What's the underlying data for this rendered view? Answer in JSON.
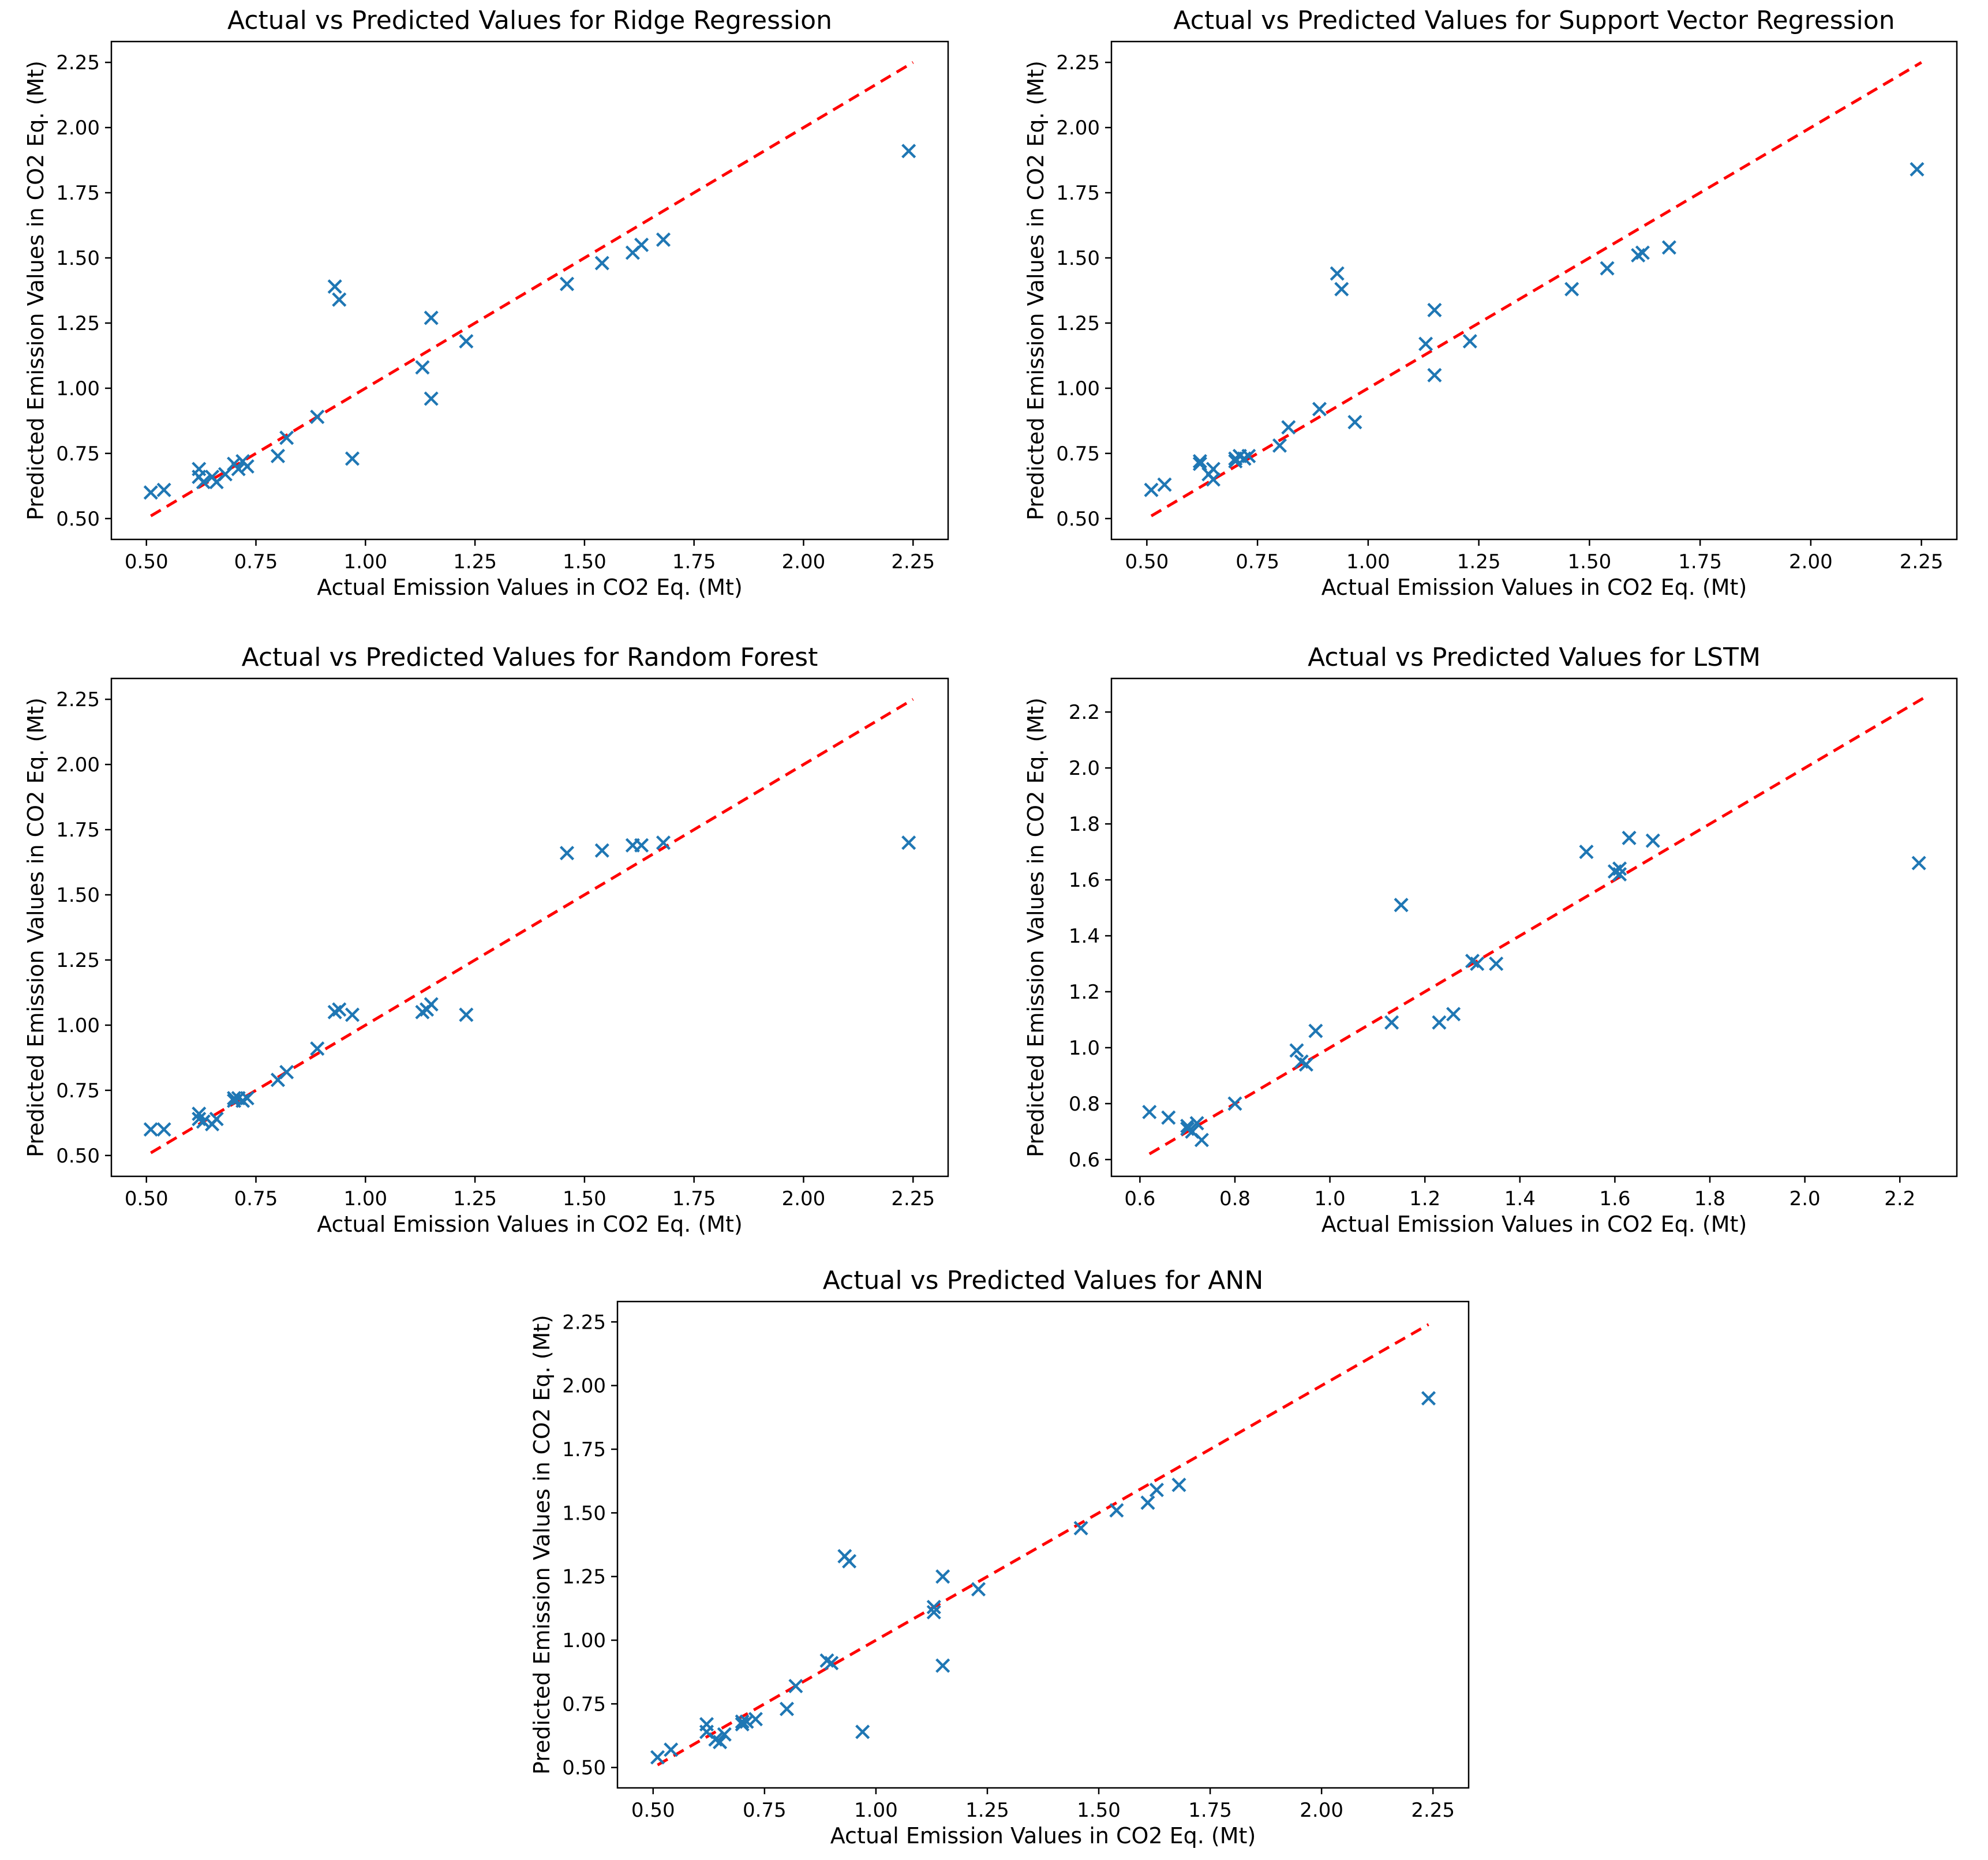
{
  "page": {
    "background": "#ffffff"
  },
  "colors": {
    "marker": "#1f77b4",
    "identity_line": "#ff0000",
    "axis": "#000000",
    "text": "#000000"
  },
  "chart_data": [
    {
      "id": "ridge",
      "type": "scatter",
      "title": "Actual vs Predicted Values for Ridge Regression",
      "xlabel": "Actual Emission Values in CO2 Eq. (Mt)",
      "ylabel": "Predicted Emission Values in CO2 Eq. (Mt)",
      "xlim": [
        0.42,
        2.33
      ],
      "ylim": [
        0.42,
        2.33
      ],
      "xticks": [
        0.5,
        0.75,
        1.0,
        1.25,
        1.5,
        1.75,
        2.0,
        2.25
      ],
      "yticks": [
        0.5,
        0.75,
        1.0,
        1.25,
        1.5,
        1.75,
        2.0,
        2.25
      ],
      "tick_decimals": 2,
      "grid": false,
      "legend": null,
      "marker": "x",
      "identity_line": [
        0.51,
        2.25
      ],
      "points": [
        [
          0.51,
          0.6
        ],
        [
          0.54,
          0.61
        ],
        [
          0.62,
          0.69
        ],
        [
          0.62,
          0.66
        ],
        [
          0.63,
          0.64
        ],
        [
          0.65,
          0.66
        ],
        [
          0.66,
          0.64
        ],
        [
          0.68,
          0.67
        ],
        [
          0.7,
          0.71
        ],
        [
          0.71,
          0.69
        ],
        [
          0.72,
          0.72
        ],
        [
          0.73,
          0.7
        ],
        [
          0.8,
          0.74
        ],
        [
          0.82,
          0.81
        ],
        [
          0.89,
          0.89
        ],
        [
          0.93,
          1.39
        ],
        [
          0.94,
          1.34
        ],
        [
          0.97,
          0.73
        ],
        [
          1.13,
          1.08
        ],
        [
          1.15,
          1.27
        ],
        [
          1.15,
          0.96
        ],
        [
          1.23,
          1.18
        ],
        [
          1.46,
          1.4
        ],
        [
          1.54,
          1.48
        ],
        [
          1.61,
          1.52
        ],
        [
          1.63,
          1.55
        ],
        [
          1.68,
          1.57
        ],
        [
          2.24,
          1.91
        ]
      ]
    },
    {
      "id": "svr",
      "type": "scatter",
      "title": "Actual vs Predicted Values for Support Vector Regression",
      "xlabel": "Actual Emission Values in CO2 Eq. (Mt)",
      "ylabel": "Predicted Emission Values in CO2 Eq. (Mt)",
      "xlim": [
        0.42,
        2.33
      ],
      "ylim": [
        0.42,
        2.33
      ],
      "xticks": [
        0.5,
        0.75,
        1.0,
        1.25,
        1.5,
        1.75,
        2.0,
        2.25
      ],
      "yticks": [
        0.5,
        0.75,
        1.0,
        1.25,
        1.5,
        1.75,
        2.0,
        2.25
      ],
      "tick_decimals": 2,
      "grid": false,
      "legend": null,
      "marker": "x",
      "identity_line": [
        0.51,
        2.25
      ],
      "points": [
        [
          0.51,
          0.61
        ],
        [
          0.54,
          0.63
        ],
        [
          0.62,
          0.72
        ],
        [
          0.62,
          0.71
        ],
        [
          0.64,
          0.67
        ],
        [
          0.65,
          0.69
        ],
        [
          0.65,
          0.65
        ],
        [
          0.7,
          0.73
        ],
        [
          0.7,
          0.72
        ],
        [
          0.71,
          0.74
        ],
        [
          0.72,
          0.73
        ],
        [
          0.73,
          0.74
        ],
        [
          0.8,
          0.78
        ],
        [
          0.82,
          0.85
        ],
        [
          0.89,
          0.92
        ],
        [
          0.93,
          1.44
        ],
        [
          0.94,
          1.38
        ],
        [
          0.97,
          0.87
        ],
        [
          1.13,
          1.17
        ],
        [
          1.15,
          1.3
        ],
        [
          1.15,
          1.05
        ],
        [
          1.23,
          1.18
        ],
        [
          1.46,
          1.38
        ],
        [
          1.54,
          1.46
        ],
        [
          1.61,
          1.51
        ],
        [
          1.62,
          1.52
        ],
        [
          1.68,
          1.54
        ],
        [
          2.24,
          1.84
        ]
      ]
    },
    {
      "id": "rf",
      "type": "scatter",
      "title": "Actual vs Predicted Values for Random Forest",
      "xlabel": "Actual Emission Values in CO2 Eq. (Mt)",
      "ylabel": "Predicted Emission Values in CO2 Eq. (Mt)",
      "xlim": [
        0.42,
        2.33
      ],
      "ylim": [
        0.42,
        2.33
      ],
      "xticks": [
        0.5,
        0.75,
        1.0,
        1.25,
        1.5,
        1.75,
        2.0,
        2.25
      ],
      "yticks": [
        0.5,
        0.75,
        1.0,
        1.25,
        1.5,
        1.75,
        2.0,
        2.25
      ],
      "tick_decimals": 2,
      "grid": false,
      "legend": null,
      "marker": "x",
      "identity_line": [
        0.51,
        2.25
      ],
      "points": [
        [
          0.51,
          0.6
        ],
        [
          0.54,
          0.6
        ],
        [
          0.62,
          0.66
        ],
        [
          0.62,
          0.64
        ],
        [
          0.63,
          0.63
        ],
        [
          0.65,
          0.62
        ],
        [
          0.66,
          0.64
        ],
        [
          0.7,
          0.71
        ],
        [
          0.7,
          0.72
        ],
        [
          0.71,
          0.72
        ],
        [
          0.72,
          0.71
        ],
        [
          0.73,
          0.72
        ],
        [
          0.8,
          0.79
        ],
        [
          0.82,
          0.82
        ],
        [
          0.89,
          0.91
        ],
        [
          0.93,
          1.05
        ],
        [
          0.94,
          1.06
        ],
        [
          0.97,
          1.04
        ],
        [
          1.13,
          1.05
        ],
        [
          1.14,
          1.06
        ],
        [
          1.15,
          1.08
        ],
        [
          1.23,
          1.04
        ],
        [
          1.46,
          1.66
        ],
        [
          1.54,
          1.67
        ],
        [
          1.61,
          1.69
        ],
        [
          1.63,
          1.69
        ],
        [
          1.68,
          1.7
        ],
        [
          2.24,
          1.7
        ]
      ]
    },
    {
      "id": "lstm",
      "type": "scatter",
      "title": "Actual vs Predicted Values for LSTM",
      "xlabel": "Actual Emission Values in CO2 Eq. (Mt)",
      "ylabel": "Predicted Emission Values in CO2 Eq. (Mt)",
      "xlim": [
        0.54,
        2.32
      ],
      "ylim": [
        0.54,
        2.32
      ],
      "xticks": [
        0.6,
        0.8,
        1.0,
        1.2,
        1.4,
        1.6,
        1.8,
        2.0,
        2.2
      ],
      "yticks": [
        0.6,
        0.8,
        1.0,
        1.2,
        1.4,
        1.6,
        1.8,
        2.0,
        2.2
      ],
      "tick_decimals": 1,
      "grid": false,
      "legend": null,
      "marker": "x",
      "identity_line": [
        0.62,
        2.25
      ],
      "points": [
        [
          0.62,
          0.77
        ],
        [
          0.66,
          0.75
        ],
        [
          0.7,
          0.72
        ],
        [
          0.7,
          0.71
        ],
        [
          0.71,
          0.7
        ],
        [
          0.72,
          0.73
        ],
        [
          0.73,
          0.67
        ],
        [
          0.8,
          0.8
        ],
        [
          0.93,
          0.99
        ],
        [
          0.94,
          0.95
        ],
        [
          0.95,
          0.94
        ],
        [
          0.97,
          1.06
        ],
        [
          1.13,
          1.09
        ],
        [
          1.15,
          1.51
        ],
        [
          1.23,
          1.09
        ],
        [
          1.26,
          1.12
        ],
        [
          1.3,
          1.31
        ],
        [
          1.31,
          1.3
        ],
        [
          1.35,
          1.3
        ],
        [
          1.54,
          1.7
        ],
        [
          1.6,
          1.63
        ],
        [
          1.61,
          1.64
        ],
        [
          1.61,
          1.62
        ],
        [
          1.63,
          1.75
        ],
        [
          1.68,
          1.74
        ],
        [
          2.24,
          1.66
        ]
      ]
    },
    {
      "id": "ann",
      "type": "scatter",
      "title": "Actual vs Predicted Values for ANN",
      "xlabel": "Actual Emission Values in CO2 Eq. (Mt)",
      "ylabel": "Predicted Emission Values in CO2 Eq. (Mt)",
      "xlim": [
        0.42,
        2.33
      ],
      "ylim": [
        0.42,
        2.33
      ],
      "xticks": [
        0.5,
        0.75,
        1.0,
        1.25,
        1.5,
        1.75,
        2.0,
        2.25
      ],
      "yticks": [
        0.5,
        0.75,
        1.0,
        1.25,
        1.5,
        1.75,
        2.0,
        2.25
      ],
      "tick_decimals": 2,
      "grid": false,
      "legend": null,
      "marker": "x",
      "identity_line": [
        0.51,
        2.24
      ],
      "points": [
        [
          0.51,
          0.54
        ],
        [
          0.54,
          0.57
        ],
        [
          0.62,
          0.67
        ],
        [
          0.62,
          0.64
        ],
        [
          0.64,
          0.61
        ],
        [
          0.65,
          0.6
        ],
        [
          0.66,
          0.63
        ],
        [
          0.7,
          0.67
        ],
        [
          0.7,
          0.68
        ],
        [
          0.71,
          0.68
        ],
        [
          0.73,
          0.69
        ],
        [
          0.8,
          0.73
        ],
        [
          0.82,
          0.82
        ],
        [
          0.89,
          0.92
        ],
        [
          0.9,
          0.91
        ],
        [
          0.93,
          1.33
        ],
        [
          0.94,
          1.31
        ],
        [
          0.97,
          0.64
        ],
        [
          1.13,
          1.13
        ],
        [
          1.13,
          1.11
        ],
        [
          1.15,
          1.25
        ],
        [
          1.15,
          0.9
        ],
        [
          1.23,
          1.2
        ],
        [
          1.46,
          1.44
        ],
        [
          1.54,
          1.51
        ],
        [
          1.61,
          1.54
        ],
        [
          1.63,
          1.59
        ],
        [
          1.68,
          1.61
        ],
        [
          2.24,
          1.95
        ]
      ]
    }
  ]
}
